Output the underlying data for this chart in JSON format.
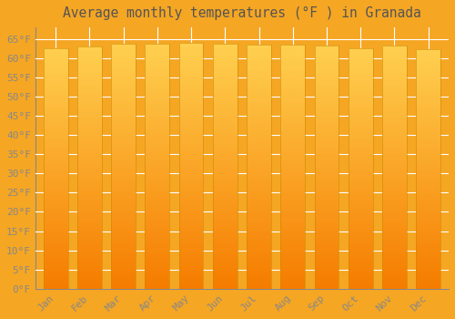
{
  "title": "Average monthly temperatures (°F ) in Granada",
  "months": [
    "Jan",
    "Feb",
    "Mar",
    "Apr",
    "May",
    "Jun",
    "Jul",
    "Aug",
    "Sep",
    "Oct",
    "Nov",
    "Dec"
  ],
  "values": [
    62.5,
    63.0,
    63.8,
    63.8,
    64.0,
    63.8,
    63.5,
    63.5,
    63.2,
    62.5,
    63.2,
    62.4
  ],
  "ylim": [
    0,
    68
  ],
  "yticks": [
    0,
    5,
    10,
    15,
    20,
    25,
    30,
    35,
    40,
    45,
    50,
    55,
    60,
    65
  ],
  "bar_color_main": "#FDB913",
  "bar_color_edge": "#E8950A",
  "background_color": "#F5A623",
  "grid_color": "#FFFFFF",
  "tick_label_color": "#888888",
  "title_color": "#555555",
  "title_fontsize": 10.5,
  "tick_fontsize": 8
}
